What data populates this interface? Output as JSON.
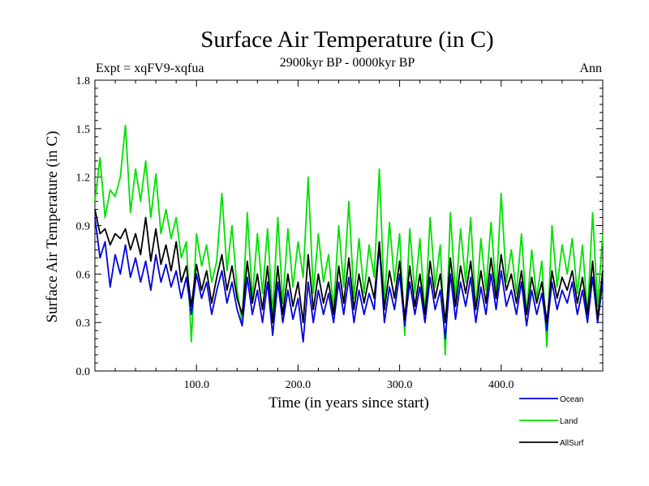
{
  "chart_data": {
    "type": "line",
    "title": "Surface Air Temperature (in C)",
    "subtitle": "2900kyr BP - 0000kyr BP",
    "experiment_label": "Expt = xqFV9-xqfua",
    "season_label": "Ann",
    "xlabel": "Time (in years since start)",
    "ylabel": "Surface Air Temperature (in C)",
    "xlim": [
      0,
      500
    ],
    "ylim": [
      0.0,
      1.8
    ],
    "x_ticks": [
      100,
      200,
      300,
      400
    ],
    "x_tick_labels": [
      "100.0",
      "200.0",
      "300.0",
      "400.0"
    ],
    "y_ticks": [
      0.0,
      0.3,
      0.6,
      0.9,
      1.2,
      1.5,
      1.8
    ],
    "y_tick_labels": [
      "0.0",
      "0.3",
      "0.6",
      "0.9",
      "1.2",
      "1.5",
      "1.8"
    ],
    "legend_position": "bottom-right",
    "series": [
      {
        "name": "Land",
        "color": "#00e000",
        "x": [
          0,
          5,
          10,
          15,
          20,
          25,
          30,
          35,
          40,
          45,
          50,
          55,
          60,
          65,
          70,
          75,
          80,
          85,
          90,
          95,
          100,
          105,
          110,
          115,
          120,
          125,
          130,
          135,
          140,
          145,
          150,
          155,
          160,
          165,
          170,
          175,
          180,
          185,
          190,
          195,
          200,
          205,
          210,
          215,
          220,
          225,
          230,
          235,
          240,
          245,
          250,
          255,
          260,
          265,
          270,
          275,
          280,
          285,
          290,
          295,
          300,
          305,
          310,
          315,
          320,
          325,
          330,
          335,
          340,
          345,
          350,
          355,
          360,
          365,
          370,
          375,
          380,
          385,
          390,
          395,
          400,
          405,
          410,
          415,
          420,
          425,
          430,
          435,
          440,
          445,
          450,
          455,
          460,
          465,
          470,
          475,
          480,
          485,
          490,
          495,
          500
        ],
        "values": [
          1.05,
          1.32,
          0.95,
          1.12,
          1.08,
          1.2,
          1.52,
          0.98,
          1.25,
          1.05,
          1.3,
          0.95,
          1.22,
          0.85,
          1.0,
          0.82,
          0.95,
          0.7,
          0.8,
          0.18,
          0.85,
          0.65,
          0.78,
          0.55,
          0.68,
          1.1,
          0.62,
          0.9,
          0.5,
          0.3,
          0.98,
          0.45,
          0.85,
          0.48,
          0.88,
          0.35,
          0.95,
          0.42,
          0.88,
          0.52,
          0.8,
          0.58,
          1.2,
          0.48,
          0.85,
          0.55,
          0.72,
          0.38,
          0.9,
          0.52,
          1.05,
          0.45,
          0.82,
          0.48,
          0.78,
          0.58,
          1.25,
          0.42,
          0.92,
          0.55,
          0.85,
          0.22,
          0.88,
          0.48,
          0.82,
          0.35,
          0.95,
          0.52,
          0.78,
          0.1,
          0.98,
          0.45,
          0.88,
          0.55,
          0.95,
          0.38,
          0.82,
          0.5,
          0.92,
          0.48,
          1.1,
          0.55,
          0.75,
          0.48,
          0.85,
          0.35,
          0.75,
          0.45,
          0.68,
          0.15,
          0.9,
          0.52,
          0.78,
          0.6,
          0.82,
          0.48,
          0.78,
          0.35,
          0.98,
          0.4,
          0.85
        ]
      },
      {
        "name": "Ocean",
        "color": "#0000e0",
        "x": [
          0,
          5,
          10,
          15,
          20,
          25,
          30,
          35,
          40,
          45,
          50,
          55,
          60,
          65,
          70,
          75,
          80,
          85,
          90,
          95,
          100,
          105,
          110,
          115,
          120,
          125,
          130,
          135,
          140,
          145,
          150,
          155,
          160,
          165,
          170,
          175,
          180,
          185,
          190,
          195,
          200,
          205,
          210,
          215,
          220,
          225,
          230,
          235,
          240,
          245,
          250,
          255,
          260,
          265,
          270,
          275,
          280,
          285,
          290,
          295,
          300,
          305,
          310,
          315,
          320,
          325,
          330,
          335,
          340,
          345,
          350,
          355,
          360,
          365,
          370,
          375,
          380,
          385,
          390,
          395,
          400,
          405,
          410,
          415,
          420,
          425,
          430,
          435,
          440,
          445,
          450,
          455,
          460,
          465,
          470,
          475,
          480,
          485,
          490,
          495,
          500
        ],
        "values": [
          0.95,
          0.7,
          0.8,
          0.52,
          0.72,
          0.6,
          0.78,
          0.58,
          0.7,
          0.55,
          0.68,
          0.5,
          0.72,
          0.55,
          0.66,
          0.52,
          0.62,
          0.45,
          0.58,
          0.35,
          0.6,
          0.45,
          0.55,
          0.35,
          0.5,
          0.62,
          0.42,
          0.55,
          0.38,
          0.28,
          0.58,
          0.35,
          0.5,
          0.3,
          0.55,
          0.22,
          0.55,
          0.3,
          0.5,
          0.32,
          0.45,
          0.18,
          0.55,
          0.3,
          0.5,
          0.35,
          0.48,
          0.3,
          0.55,
          0.35,
          0.58,
          0.3,
          0.5,
          0.35,
          0.48,
          0.38,
          0.78,
          0.3,
          0.52,
          0.38,
          0.6,
          0.28,
          0.55,
          0.35,
          0.52,
          0.3,
          0.58,
          0.38,
          0.5,
          0.2,
          0.6,
          0.32,
          0.55,
          0.4,
          0.58,
          0.3,
          0.52,
          0.35,
          0.6,
          0.38,
          0.62,
          0.4,
          0.5,
          0.35,
          0.55,
          0.28,
          0.5,
          0.35,
          0.48,
          0.25,
          0.55,
          0.38,
          0.5,
          0.42,
          0.55,
          0.35,
          0.5,
          0.3,
          0.58,
          0.3,
          0.55
        ]
      },
      {
        "name": "AllSurf",
        "color": "#000000",
        "x": [
          0,
          5,
          10,
          15,
          20,
          25,
          30,
          35,
          40,
          45,
          50,
          55,
          60,
          65,
          70,
          75,
          80,
          85,
          90,
          95,
          100,
          105,
          110,
          115,
          120,
          125,
          130,
          135,
          140,
          145,
          150,
          155,
          160,
          165,
          170,
          175,
          180,
          185,
          190,
          195,
          200,
          205,
          210,
          215,
          220,
          225,
          230,
          235,
          240,
          245,
          250,
          255,
          260,
          265,
          270,
          275,
          280,
          285,
          290,
          295,
          300,
          305,
          310,
          315,
          320,
          325,
          330,
          335,
          340,
          345,
          350,
          355,
          360,
          365,
          370,
          375,
          380,
          385,
          390,
          395,
          400,
          405,
          410,
          415,
          420,
          425,
          430,
          435,
          440,
          445,
          450,
          455,
          460,
          465,
          470,
          475,
          480,
          485,
          490,
          495,
          500
        ],
        "values": [
          1.0,
          0.85,
          0.88,
          0.78,
          0.85,
          0.82,
          0.88,
          0.75,
          0.85,
          0.72,
          0.95,
          0.68,
          0.88,
          0.66,
          0.78,
          0.62,
          0.8,
          0.55,
          0.65,
          0.4,
          0.66,
          0.5,
          0.62,
          0.42,
          0.58,
          0.72,
          0.5,
          0.65,
          0.45,
          0.35,
          0.68,
          0.42,
          0.6,
          0.38,
          0.65,
          0.3,
          0.65,
          0.35,
          0.6,
          0.4,
          0.55,
          0.3,
          0.72,
          0.38,
          0.6,
          0.42,
          0.55,
          0.35,
          0.65,
          0.42,
          0.7,
          0.38,
          0.6,
          0.42,
          0.58,
          0.45,
          0.8,
          0.38,
          0.62,
          0.45,
          0.68,
          0.32,
          0.65,
          0.4,
          0.6,
          0.35,
          0.68,
          0.45,
          0.6,
          0.3,
          0.7,
          0.4,
          0.65,
          0.48,
          0.68,
          0.38,
          0.62,
          0.42,
          0.7,
          0.45,
          0.72,
          0.5,
          0.6,
          0.42,
          0.62,
          0.35,
          0.58,
          0.42,
          0.55,
          0.3,
          0.62,
          0.45,
          0.58,
          0.5,
          0.62,
          0.42,
          0.58,
          0.35,
          0.68,
          0.32,
          0.62
        ]
      }
    ]
  }
}
